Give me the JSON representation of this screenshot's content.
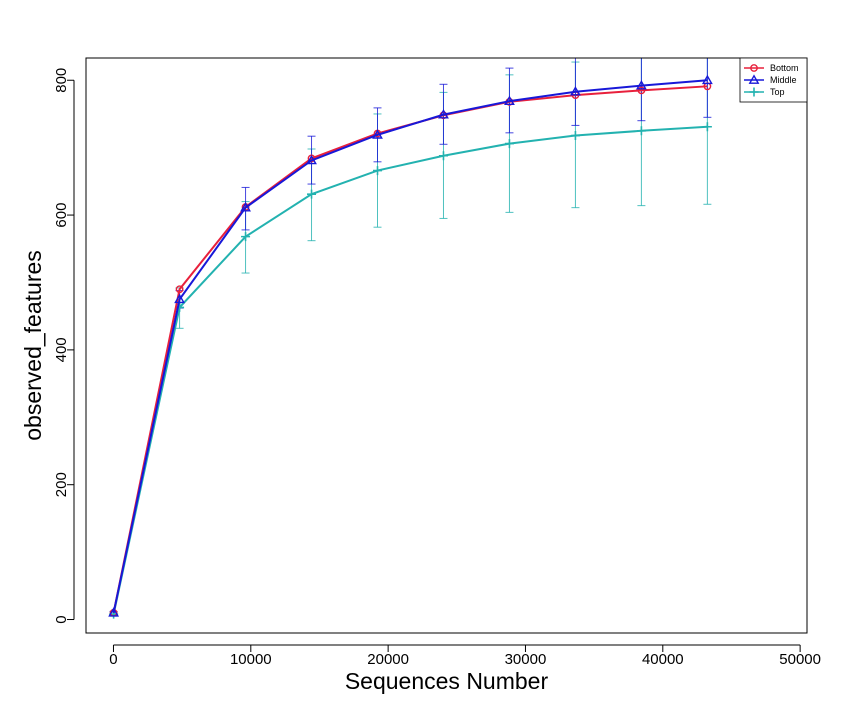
{
  "chart_data": {
    "type": "line",
    "xlabel": "Sequences Number",
    "ylabel": "observed_features",
    "xlim": [
      -2000,
      50500
    ],
    "ylim": [
      -20,
      833
    ],
    "xticks": [
      0,
      10000,
      20000,
      30000,
      40000,
      50000
    ],
    "xtick_labels": [
      "0",
      "10000",
      "20000",
      "30000",
      "40000",
      "50000"
    ],
    "yticks": [
      0,
      200,
      400,
      600,
      800
    ],
    "ytick_labels": [
      "0",
      "200",
      "400",
      "600",
      "800"
    ],
    "grid": false,
    "legend_position": "top-right",
    "x": [
      10,
      4814,
      9618,
      14422,
      19226,
      24030,
      28834,
      33638,
      38442,
      43246
    ],
    "series": [
      {
        "name": "Bottom",
        "color": "#e8203c",
        "marker": "circle",
        "values": [
          10,
          490,
          612,
          684,
          721,
          748,
          768,
          778,
          785,
          791
        ],
        "err_low": [
          0,
          0,
          0,
          0,
          0,
          0,
          0,
          0,
          0,
          0
        ],
        "err_high": [
          0,
          0,
          0,
          0,
          0,
          0,
          0,
          0,
          0,
          0
        ]
      },
      {
        "name": "Middle",
        "color": "#1818d8",
        "marker": "triangle",
        "values": [
          10,
          475,
          611,
          681,
          719,
          749,
          769,
          783,
          792,
          800
        ],
        "err_low": [
          8,
          462,
          578,
          646,
          679,
          705,
          722,
          733,
          740,
          745
        ],
        "err_high": [
          12,
          488,
          641,
          717,
          759,
          794,
          818,
          834,
          846,
          855
        ]
      },
      {
        "name": "Top",
        "color": "#23b2b0",
        "marker": "plus",
        "values": [
          8,
          463,
          568,
          631,
          666,
          688,
          706,
          718,
          725,
          731
        ],
        "err_low": [
          5,
          432,
          514,
          562,
          582,
          595,
          604,
          611,
          614,
          616
        ],
        "err_high": [
          11,
          492,
          620,
          698,
          750,
          782,
          808,
          827,
          838,
          846
        ]
      }
    ]
  }
}
